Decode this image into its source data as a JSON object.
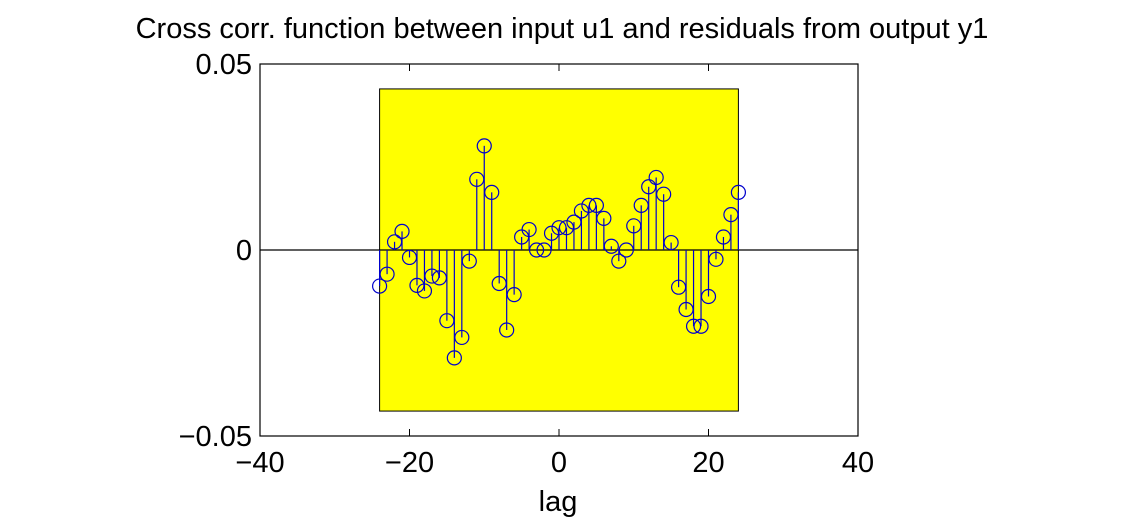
{
  "chart_data": {
    "type": "stem",
    "title": "Cross corr. function between input u1 and residuals from output y1",
    "xlabel": "lag",
    "ylabel": "",
    "xlim": [
      -40,
      40
    ],
    "ylim": [
      -0.05,
      0.05
    ],
    "xticks": [
      -40,
      -20,
      0,
      20,
      40
    ],
    "xtick_labels": [
      "−40",
      "−20",
      "0",
      "20",
      "40"
    ],
    "yticks": [
      -0.05,
      0,
      0.05
    ],
    "ytick_labels": [
      "−0.05",
      "0",
      "0.05"
    ],
    "grid": false,
    "confidence_region": {
      "x": [
        -24,
        24
      ],
      "y": [
        -0.0433,
        0.0433
      ],
      "color": "#ffff00"
    },
    "series": [
      {
        "color": "#0000cc",
        "marker": "circle",
        "x": [
          -24,
          -23,
          -22,
          -21,
          -20,
          -19,
          -18,
          -17,
          -16,
          -15,
          -14,
          -13,
          -12,
          -11,
          -10,
          -9,
          -8,
          -7,
          -6,
          -5,
          -4,
          -3,
          -2,
          -1,
          0,
          1,
          2,
          3,
          4,
          5,
          6,
          7,
          8,
          9,
          10,
          11,
          12,
          13,
          14,
          15,
          16,
          17,
          18,
          19,
          20,
          21,
          22,
          23,
          24
        ],
        "y": [
          -0.0097,
          -0.0065,
          0.0022,
          0.005,
          -0.002,
          -0.0095,
          -0.011,
          -0.007,
          -0.0075,
          -0.019,
          -0.029,
          -0.0235,
          -0.003,
          0.019,
          0.028,
          0.0155,
          -0.009,
          -0.0215,
          -0.012,
          0.0035,
          0.0055,
          0.0,
          0.0,
          0.0045,
          0.006,
          0.006,
          0.0075,
          0.0105,
          0.012,
          0.012,
          0.0085,
          0.001,
          -0.003,
          0.0,
          0.0065,
          0.012,
          0.017,
          0.0195,
          0.015,
          0.002,
          -0.01,
          -0.016,
          -0.0205,
          -0.0205,
          -0.0125,
          -0.0025,
          0.0035,
          0.0095,
          0.0155
        ]
      }
    ]
  }
}
